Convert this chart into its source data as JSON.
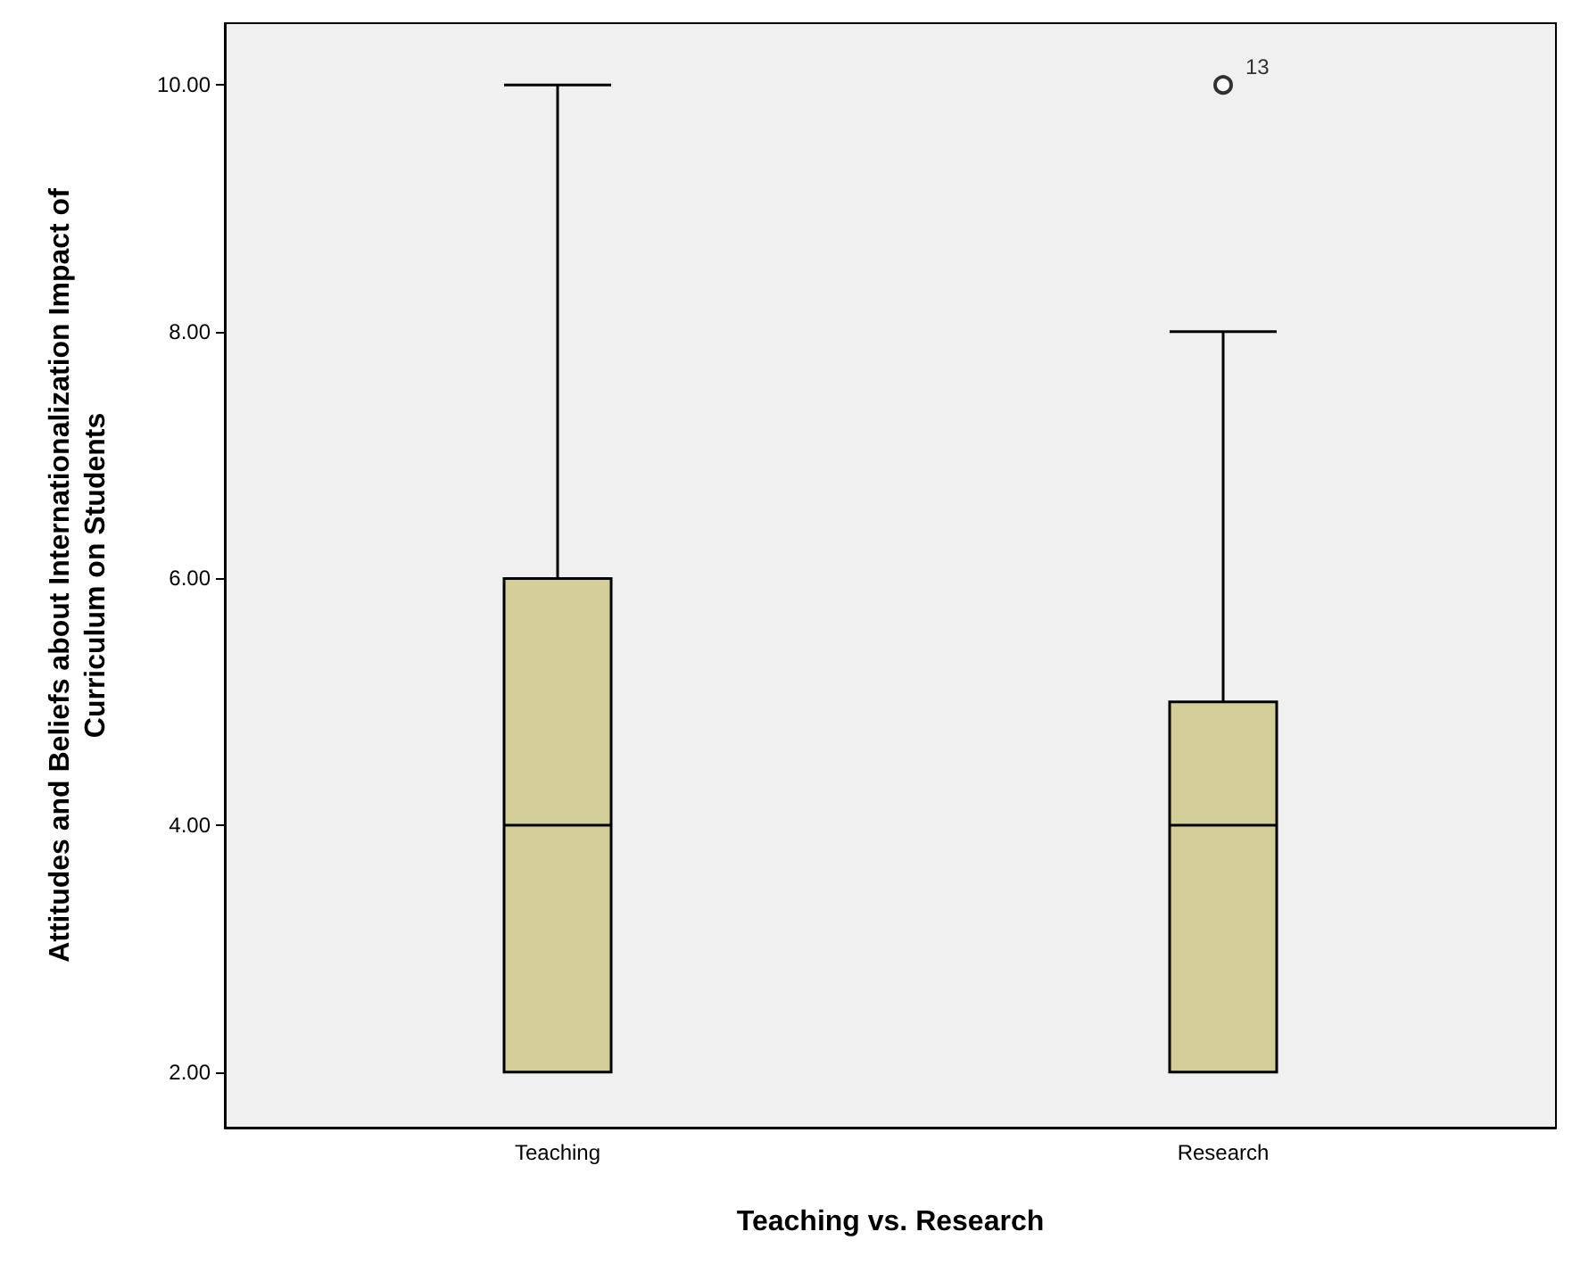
{
  "chart_data": {
    "type": "box",
    "xlabel": "Teaching vs. Research",
    "ylabel": "Attitudes and Beliefs about Internationalization Impact of Curriculum on Students",
    "categories": [
      "Teaching",
      "Research"
    ],
    "color": "#d3ce9a",
    "boxes": [
      {
        "low": 2,
        "q1": 2,
        "median": 4,
        "q3": 6,
        "high": 10
      },
      {
        "low": 2,
        "q1": 2,
        "median": 4,
        "q3": 5,
        "high": 8,
        "outliers": [
          10
        ]
      }
    ],
    "ylim": [
      1.55,
      10.5
    ],
    "yticks": [
      {
        "value": 2,
        "label": "2.00"
      },
      {
        "value": 4,
        "label": "4.00"
      },
      {
        "value": 6,
        "label": "6.00"
      },
      {
        "value": 8,
        "label": "8.00"
      },
      {
        "value": 10,
        "label": "10.00"
      }
    ],
    "annotations": [
      "13"
    ],
    "grid": false
  }
}
